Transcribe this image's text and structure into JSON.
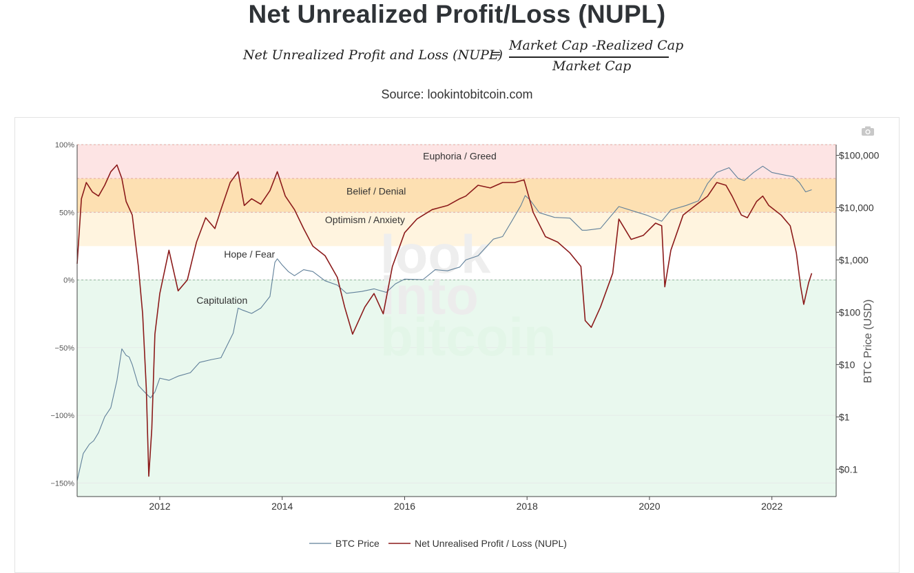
{
  "page": {
    "title": "Net Unrealized Profit/Loss (NUPL)",
    "formula": {
      "lhs": "Net Unrealized Profit and Loss (NUPL)",
      "equals": "=",
      "numerator": "Market Cap -Realized Cap",
      "denominator": "Market Cap"
    },
    "source": "Source: lookintobitcoin.com",
    "watermark": [
      "look",
      "into",
      "bitcoin"
    ],
    "icons": {
      "camera": "camera-icon"
    }
  },
  "chart_data": {
    "type": "line",
    "x_ticks": [
      2012,
      2014,
      2016,
      2018,
      2020,
      2022
    ],
    "x_tick_labels": [
      "2012",
      "2014",
      "2016",
      "2018",
      "2020",
      "2022"
    ],
    "xlim": [
      2010.65,
      2023.05
    ],
    "y_left": {
      "ticks": [
        100,
        50,
        0,
        -50,
        -100,
        -150
      ],
      "tick_labels": [
        "100%",
        "50%",
        "0%",
        "−50%",
        "−100%",
        "−150%"
      ],
      "lim": [
        -160,
        100
      ]
    },
    "y_right": {
      "label": "BTC Price (USD)",
      "scale": "log",
      "ticks": [
        100000,
        10000,
        1000,
        100,
        10,
        1,
        0.1
      ],
      "tick_labels": [
        "$100,000",
        "$10,000",
        "$1,000",
        "$100",
        "$10",
        "$1",
        "$0.1"
      ],
      "lim": [
        0.03,
        160000
      ]
    },
    "zones": [
      {
        "label": "Euphoria / Greed",
        "from": 75,
        "to": 100,
        "color": "#fde4e4",
        "label_at": [
          2016.3,
          89
        ]
      },
      {
        "label": "Belief / Denial",
        "from": 50,
        "to": 75,
        "color": "#fde0b2",
        "label_at": [
          2015.05,
          63
        ]
      },
      {
        "label": "Optimism / Anxiety",
        "from": 25,
        "to": 50,
        "color": "#fff4df",
        "label_at": [
          2014.7,
          42
        ]
      },
      {
        "label": "Hope / Fear",
        "from": 0,
        "to": 25,
        "color": "#ffffff",
        "label_at": [
          2013.05,
          16.5
        ]
      },
      {
        "label": "Capitulation",
        "from": -160,
        "to": 0,
        "color": "#e9f8ee",
        "label_at": [
          2012.6,
          -17.5
        ]
      }
    ],
    "grid": true,
    "legend_position": "bottom",
    "series": [
      {
        "name": "BTC Price",
        "axis": "right",
        "color": "#5f7f99",
        "x": [
          2010.65,
          2010.75,
          2010.85,
          2010.92,
          2011.0,
          2011.1,
          2011.2,
          2011.3,
          2011.38,
          2011.45,
          2011.5,
          2011.55,
          2011.65,
          2011.75,
          2011.85,
          2011.92,
          2012.0,
          2012.15,
          2012.3,
          2012.5,
          2012.65,
          2012.85,
          2013.0,
          2013.2,
          2013.28,
          2013.35,
          2013.5,
          2013.65,
          2013.8,
          2013.88,
          2013.92,
          2014.0,
          2014.1,
          2014.2,
          2014.35,
          2014.5,
          2014.7,
          2014.9,
          2015.05,
          2015.3,
          2015.5,
          2015.7,
          2015.85,
          2016.0,
          2016.3,
          2016.5,
          2016.7,
          2016.9,
          2017.0,
          2017.2,
          2017.45,
          2017.6,
          2017.75,
          2017.9,
          2017.97,
          2018.05,
          2018.2,
          2018.45,
          2018.7,
          2018.9,
          2018.97,
          2019.2,
          2019.5,
          2019.75,
          2019.95,
          2020.2,
          2020.35,
          2020.6,
          2020.8,
          2020.95,
          2021.1,
          2021.3,
          2021.45,
          2021.55,
          2021.7,
          2021.85,
          2022.0,
          2022.2,
          2022.35,
          2022.45,
          2022.55,
          2022.65
        ],
        "y": [
          0.06,
          0.2,
          0.3,
          0.35,
          0.5,
          1.0,
          1.5,
          5,
          20,
          15,
          14,
          10,
          4,
          3,
          2.3,
          3.0,
          5.5,
          5.0,
          6.0,
          7.0,
          11,
          12.5,
          13.5,
          40,
          120,
          110,
          95,
          120,
          200,
          900,
          1050,
          800,
          600,
          500,
          650,
          600,
          400,
          330,
          230,
          250,
          280,
          240,
          350,
          430,
          420,
          650,
          620,
          730,
          1000,
          1200,
          2500,
          2800,
          5500,
          11000,
          17000,
          14000,
          8000,
          6500,
          6300,
          3700,
          3700,
          4000,
          10500,
          8500,
          7200,
          5500,
          9000,
          11000,
          13500,
          29000,
          47000,
          58000,
          36000,
          33000,
          47000,
          62000,
          47000,
          42000,
          39000,
          30000,
          20000,
          22000
        ]
      },
      {
        "name": "Net Unrealised Profit / Loss (NUPL)",
        "axis": "left",
        "color": "#8b1a1a",
        "x": [
          2010.65,
          2010.72,
          2010.8,
          2010.9,
          2011.0,
          2011.1,
          2011.2,
          2011.3,
          2011.38,
          2011.45,
          2011.55,
          2011.65,
          2011.72,
          2011.78,
          2011.82,
          2011.87,
          2011.92,
          2012.0,
          2012.15,
          2012.3,
          2012.45,
          2012.6,
          2012.75,
          2012.9,
          2013.0,
          2013.15,
          2013.28,
          2013.38,
          2013.5,
          2013.65,
          2013.8,
          2013.92,
          2014.05,
          2014.2,
          2014.35,
          2014.5,
          2014.7,
          2014.9,
          2015.02,
          2015.15,
          2015.35,
          2015.5,
          2015.65,
          2015.8,
          2016.0,
          2016.2,
          2016.45,
          2016.7,
          2016.9,
          2017.0,
          2017.2,
          2017.4,
          2017.6,
          2017.8,
          2017.95,
          2018.1,
          2018.3,
          2018.5,
          2018.7,
          2018.88,
          2018.95,
          2019.05,
          2019.2,
          2019.4,
          2019.5,
          2019.7,
          2019.9,
          2020.1,
          2020.2,
          2020.25,
          2020.35,
          2020.55,
          2020.75,
          2020.95,
          2021.1,
          2021.25,
          2021.35,
          2021.5,
          2021.6,
          2021.75,
          2021.85,
          2021.95,
          2022.15,
          2022.3,
          2022.4,
          2022.47,
          2022.52,
          2022.6,
          2022.65
        ],
        "y": [
          12,
          60,
          72,
          65,
          62,
          70,
          80,
          85,
          75,
          58,
          48,
          10,
          -25,
          -80,
          -145,
          -110,
          -40,
          -10,
          22,
          -8,
          0,
          28,
          46,
          38,
          52,
          72,
          80,
          55,
          60,
          56,
          66,
          80,
          62,
          52,
          38,
          25,
          18,
          2,
          -20,
          -40,
          -20,
          -10,
          -25,
          10,
          35,
          45,
          52,
          55,
          60,
          62,
          70,
          68,
          72,
          72,
          74,
          50,
          32,
          28,
          20,
          10,
          -30,
          -35,
          -20,
          5,
          45,
          30,
          33,
          42,
          40,
          -5,
          22,
          48,
          55,
          62,
          72,
          70,
          62,
          48,
          46,
          58,
          62,
          55,
          48,
          40,
          20,
          -5,
          -18,
          -2,
          5
        ]
      }
    ]
  }
}
